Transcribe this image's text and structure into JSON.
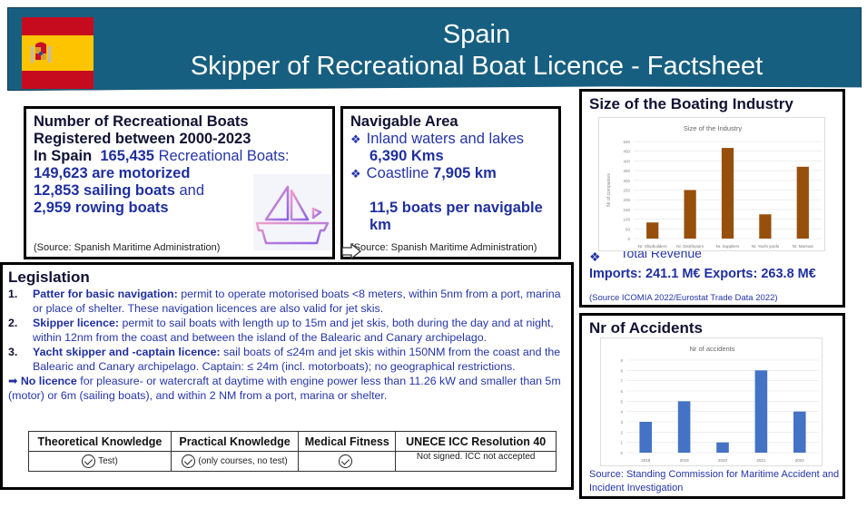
{
  "header": {
    "title": "Spain",
    "subtitle": "Skipper of Recreational Boat Licence - Factsheet",
    "flag_icon": "spain-flag-icon",
    "colors": {
      "banner": "#175f80",
      "flag_red": "#c60b1e",
      "flag_yellow": "#ffc400"
    }
  },
  "boats": {
    "heading1": "Number of Recreational Boats",
    "heading2": "Registered between 2000-2023",
    "in_spain_label": "In Spain",
    "total": "165,435",
    "total_suffix": "Recreational Boats:",
    "motorized_value": "149,623 are motorized",
    "sailing_value": "12,853 sailing boats",
    "sailing_suffix": "and",
    "rowing_value": "2,959  rowing boats",
    "source": "(Source: Spanish Maritime Administration)",
    "icon": "sailboat-icon"
  },
  "navigable": {
    "heading": "Navigable Area",
    "item1_label": "Inland waters and lakes",
    "item1_value": "6,390 Kms",
    "item2_label": "Coastline",
    "item2_value": "7,905 km",
    "density": "11,5 boats per navigable km",
    "source": "(Source: Spanish Maritime Administration)"
  },
  "industry": {
    "heading": "Size of the Boating Industry",
    "revenue_label": "Total Revenue",
    "trade": "Imports: 241.1 M€  Exports: 263.8 M€",
    "source": "(Source ICOMIA 2022/Eurostat Trade Data 2022)"
  },
  "accidents": {
    "heading": "Nr of Accidents",
    "source": "Source: Standing Commission for Maritime Accident and Incident Investigation"
  },
  "legislation": {
    "heading": "Legislation",
    "items": [
      {
        "num": "1.",
        "title": "Patter for basic navigation:",
        "text": " permit to operate motorised boats  <8 meters, within 5nm from a port, marina or place of shelter. These navigation licences are also valid for jet skis."
      },
      {
        "num": "2.",
        "title": "Skipper licence:",
        "text": " permit to sail boats with length up to 15m and jet skis, both during the day and at night, within 12nm from the coast and between the island of the Balearic and Canary archipelago."
      },
      {
        "num": "3.",
        "title": "Yacht skipper and -captain licence:",
        "text": " sail boats of ≤24m and jet skis within 150NM from the coast and the Balearic and Canary archipelago. Captain: ≤ 24m (incl. motorboats); no geographical restrictions."
      }
    ],
    "no_licence_title": "No licence",
    "no_licence_text": " for pleasure- or watercraft at daytime with engine power less than 11.26 kW and smaller than 5m (motor) or 6m (sailing boats), and within 2 NM from a port, marina or shelter.",
    "table": {
      "headers": [
        "Theoretical Knowledge",
        "Practical  Knowledge",
        "Medical Fitness",
        "UNECE ICC Resolution 40"
      ],
      "row": [
        "Test)",
        "(only courses, no test)",
        "",
        "Not signed. ICC not accepted"
      ]
    }
  },
  "chart_data": [
    {
      "type": "bar",
      "title": "Size of the Industry",
      "categories": [
        "Nr. Shipbuilders",
        "Nr. Distributors",
        "Nr. Suppliers",
        "Nr. Yacht yards",
        "Nr. Marinas"
      ],
      "values": [
        83,
        250,
        467,
        125,
        370
      ],
      "xlabel": "",
      "ylabel": "Nr of companies",
      "ylim": [
        0,
        500
      ],
      "yticks": [
        0,
        50,
        100,
        150,
        200,
        250,
        300,
        350,
        400,
        450,
        500
      ],
      "color": "#974f0c",
      "grid": true
    },
    {
      "type": "bar",
      "title": "Nr of accidents",
      "categories": [
        "2018",
        "2019",
        "2020",
        "2021",
        "2022"
      ],
      "values": [
        3,
        5,
        1,
        8,
        4
      ],
      "xlabel": "",
      "ylabel": "",
      "ylim": [
        0,
        9
      ],
      "yticks": [
        0,
        1,
        2,
        3,
        4,
        5,
        6,
        7,
        8,
        9
      ],
      "color": "#4472c4",
      "grid": true
    }
  ]
}
